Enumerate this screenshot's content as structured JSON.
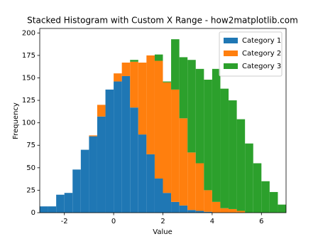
{
  "chart_data": {
    "type": "histogram",
    "title": "Stacked Histogram with Custom X Range - how2matplotlib.com",
    "x_label": "Value",
    "y_label": "Frequency",
    "bins": [
      -3,
      -2.667,
      -2.333,
      -2,
      -1.667,
      -1.333,
      -1,
      -0.667,
      -0.333,
      0,
      0.333,
      0.667,
      1,
      1.333,
      1.667,
      2,
      2.333,
      2.667,
      3,
      3.333,
      3.667,
      4,
      4.333,
      4.667,
      5,
      5.333,
      5.667,
      6,
      6.333,
      6.667,
      7
    ],
    "stacked": true,
    "series": [
      {
        "name": "Category 1",
        "color": "#1f77b4",
        "values": [
          7,
          7,
          20,
          22,
          48,
          70,
          85,
          107,
          137,
          146,
          152,
          117,
          87,
          65,
          38,
          22,
          12,
          8,
          3,
          2,
          1,
          0,
          0,
          0,
          0,
          0,
          0,
          0,
          0,
          0
        ]
      },
      {
        "name": "Category 2",
        "color": "#ff7f0e",
        "values": [
          0,
          0,
          0,
          0,
          0,
          0,
          1,
          13,
          0,
          9,
          15,
          51,
          80,
          110,
          131,
          123,
          125,
          97,
          64,
          53,
          24,
          12,
          5,
          4,
          2,
          0,
          0,
          0,
          0,
          0
        ]
      },
      {
        "name": "Category 3",
        "color": "#2ca02c",
        "values": [
          0,
          0,
          0,
          0,
          0,
          0,
          0,
          0,
          0,
          0,
          0,
          2,
          0,
          0,
          7,
          1,
          56,
          68,
          103,
          105,
          123,
          148,
          133,
          121,
          102,
          77,
          55,
          35,
          23,
          9
        ]
      }
    ],
    "xlim": [
      -3,
      7
    ],
    "xticks": [
      -2,
      0,
      2,
      4,
      6
    ],
    "ylim": [
      0,
      205
    ],
    "yticks": [
      0,
      25,
      50,
      75,
      100,
      125,
      150,
      175,
      200
    ],
    "legend": "upper right"
  }
}
